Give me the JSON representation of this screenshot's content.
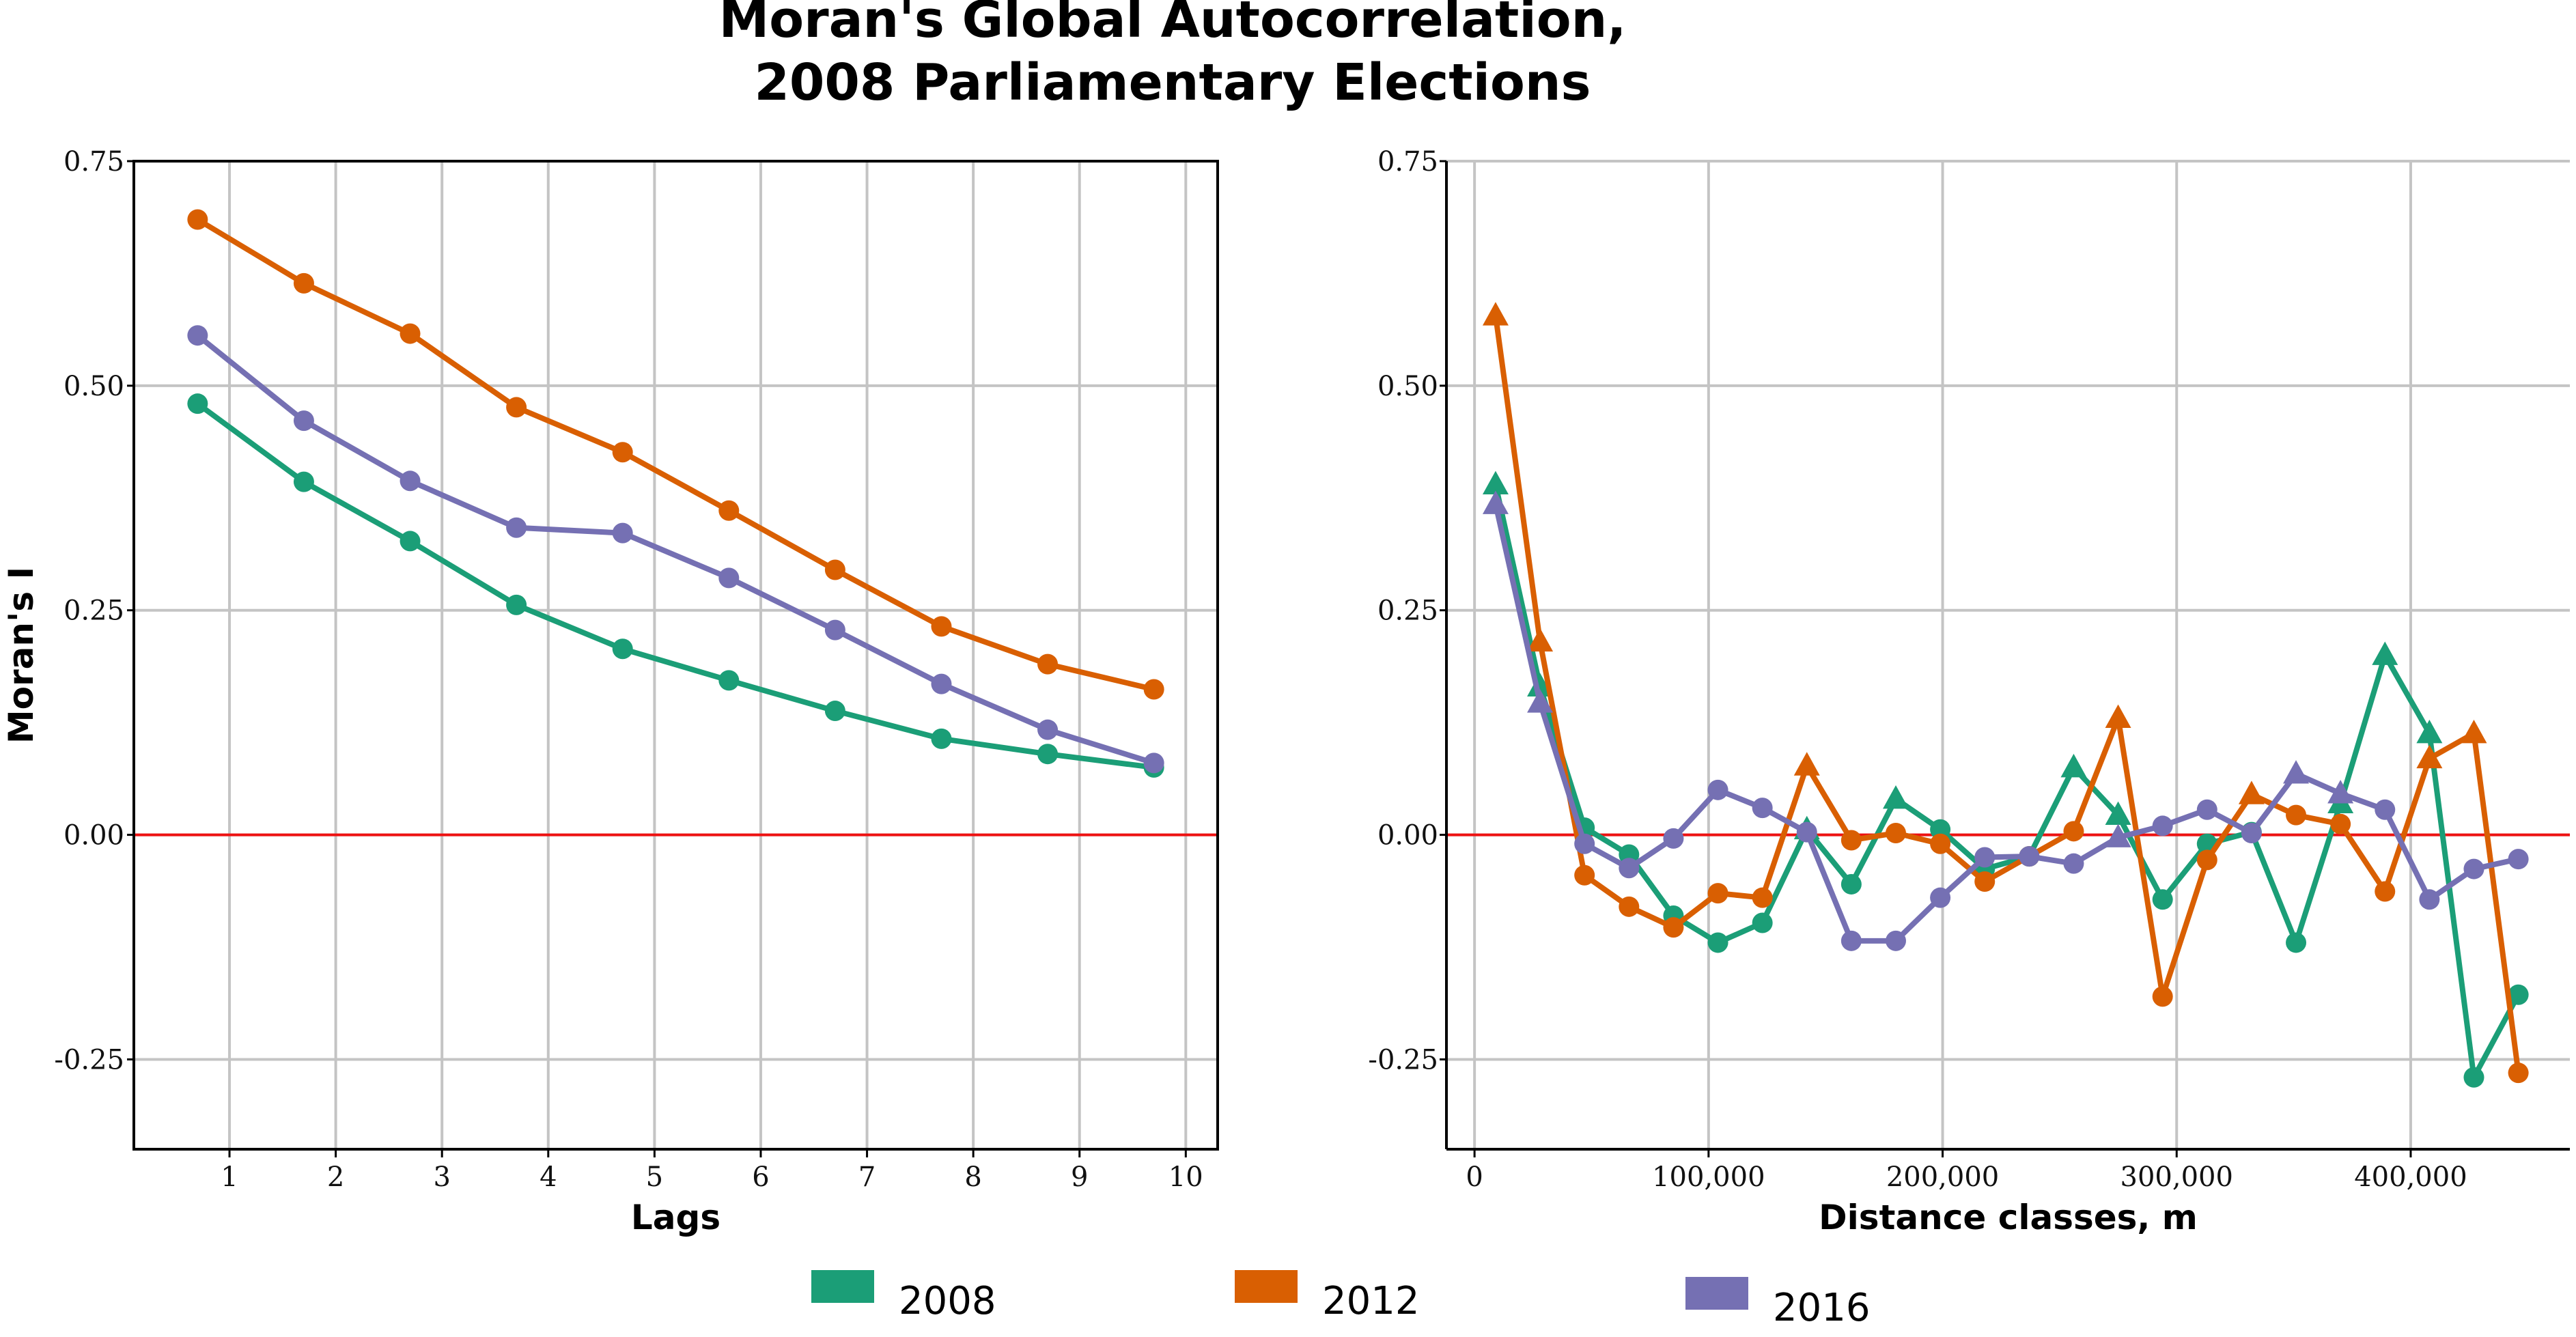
{
  "title_lines": [
    "Moran's Global Autocorrelation,",
    "2008 Parliamentary Elections"
  ],
  "colors": {
    "2008": "#1b9e77",
    "2012": "#d95f02",
    "2016": "#7570b3",
    "zero_line": "#ee1111"
  },
  "legend": [
    {
      "label": "2008",
      "color": "#1b9e77"
    },
    {
      "label": "2012",
      "color": "#d95f02"
    },
    {
      "label": "2016",
      "color": "#7570b3"
    }
  ],
  "chart_data": [
    {
      "type": "line",
      "marker": "circle",
      "xlabel": "Lags",
      "ylabel": "Moran's I",
      "xlim": [
        0.1,
        10.3
      ],
      "ylim": [
        -0.35,
        0.75
      ],
      "x_ticks": [
        1,
        2,
        3,
        4,
        5,
        6,
        7,
        8,
        9,
        10
      ],
      "x_tick_labels": [
        "1",
        "2",
        "3",
        "4",
        "5",
        "6",
        "7",
        "8",
        "9",
        "10"
      ],
      "y_ticks": [
        -0.25,
        0,
        0.25,
        0.5,
        0.75
      ],
      "y_tick_labels": [
        "-0.25",
        "0.00",
        "0.25",
        "0.50",
        "0.75"
      ],
      "reference_line": 0,
      "x": [
        0.7,
        1.7,
        2.7,
        3.7,
        4.7,
        5.7,
        6.7,
        7.7,
        8.7,
        9.7
      ],
      "series": [
        {
          "name": "2008",
          "color": "#1b9e77",
          "values": [
            0.48,
            0.393,
            0.327,
            0.256,
            0.207,
            0.172,
            0.138,
            0.107,
            0.09,
            0.075
          ]
        },
        {
          "name": "2012",
          "color": "#d95f02",
          "values": [
            0.685,
            0.614,
            0.558,
            0.476,
            0.426,
            0.361,
            0.295,
            0.232,
            0.19,
            0.162
          ]
        },
        {
          "name": "2016",
          "color": "#7570b3",
          "values": [
            0.556,
            0.461,
            0.394,
            0.342,
            0.336,
            0.286,
            0.228,
            0.168,
            0.117,
            0.08
          ]
        }
      ]
    },
    {
      "type": "line",
      "marker": "mixed",
      "xlabel": "Distance classes, m",
      "ylabel": "",
      "xlim": [
        -12000,
        468000
      ],
      "ylim": [
        -0.35,
        0.75
      ],
      "x_ticks": [
        0,
        100000,
        200000,
        300000,
        400000
      ],
      "x_tick_labels": [
        "0",
        "100,000",
        "200,000",
        "300,000",
        "400,000"
      ],
      "y_ticks": [
        -0.25,
        0,
        0.25,
        0.5,
        0.75
      ],
      "y_tick_labels": [
        "-0.25",
        "0.00",
        "0.25",
        "0.50",
        "0.75"
      ],
      "reference_line": 0,
      "x": [
        9000,
        28000,
        47000,
        66000,
        85000,
        104000,
        123000,
        142000,
        161000,
        180000,
        199000,
        218000,
        237000,
        256000,
        275000,
        294000,
        313000,
        332000,
        351000,
        370000,
        389000,
        408000,
        427000,
        446000
      ],
      "series": [
        {
          "name": "2008",
          "color": "#1b9e77",
          "values": [
            0.39,
            0.165,
            0.008,
            -0.022,
            -0.09,
            -0.12,
            -0.098,
            0.006,
            -0.055,
            0.04,
            0.006,
            -0.038,
            -0.024,
            0.075,
            0.022,
            -0.072,
            -0.01,
            0.003,
            -0.12,
            0.035,
            0.2,
            0.113,
            -0.27,
            -0.178
          ],
          "markers": [
            "triangle",
            "triangle",
            "circle",
            "circle",
            "circle",
            "circle",
            "circle",
            "triangle",
            "circle",
            "triangle",
            "circle",
            "circle",
            "circle",
            "triangle",
            "triangle",
            "circle",
            "circle",
            "circle",
            "circle",
            "triangle",
            "triangle",
            "triangle",
            "circle",
            "circle"
          ]
        },
        {
          "name": "2012",
          "color": "#d95f02",
          "values": [
            0.578,
            0.215,
            -0.045,
            -0.08,
            -0.103,
            -0.065,
            -0.07,
            0.077,
            -0.006,
            0.002,
            -0.01,
            -0.052,
            -0.024,
            0.004,
            0.13,
            -0.18,
            -0.028,
            0.045,
            0.022,
            0.012,
            -0.063,
            0.085,
            0.113,
            -0.265
          ],
          "markers": [
            "triangle",
            "triangle",
            "circle",
            "circle",
            "circle",
            "circle",
            "circle",
            "triangle",
            "circle",
            "circle",
            "circle",
            "circle",
            "circle",
            "circle",
            "triangle",
            "circle",
            "circle",
            "triangle",
            "circle",
            "circle",
            "circle",
            "triangle",
            "triangle",
            "circle"
          ]
        },
        {
          "name": "2016",
          "color": "#7570b3",
          "values": [
            0.368,
            0.147,
            -0.01,
            -0.037,
            -0.004,
            0.05,
            0.03,
            0.003,
            -0.118,
            -0.118,
            -0.07,
            -0.025,
            -0.024,
            -0.032,
            -0.003,
            0.01,
            0.028,
            0.002,
            0.068,
            0.046,
            0.028,
            -0.072,
            -0.038,
            -0.027
          ],
          "markers": [
            "triangle",
            "triangle",
            "circle",
            "circle",
            "circle",
            "circle",
            "circle",
            "circle",
            "circle",
            "circle",
            "circle",
            "circle",
            "circle",
            "circle",
            "triangle",
            "circle",
            "circle",
            "circle",
            "triangle",
            "triangle",
            "circle",
            "circle",
            "circle",
            "circle"
          ]
        }
      ]
    }
  ]
}
